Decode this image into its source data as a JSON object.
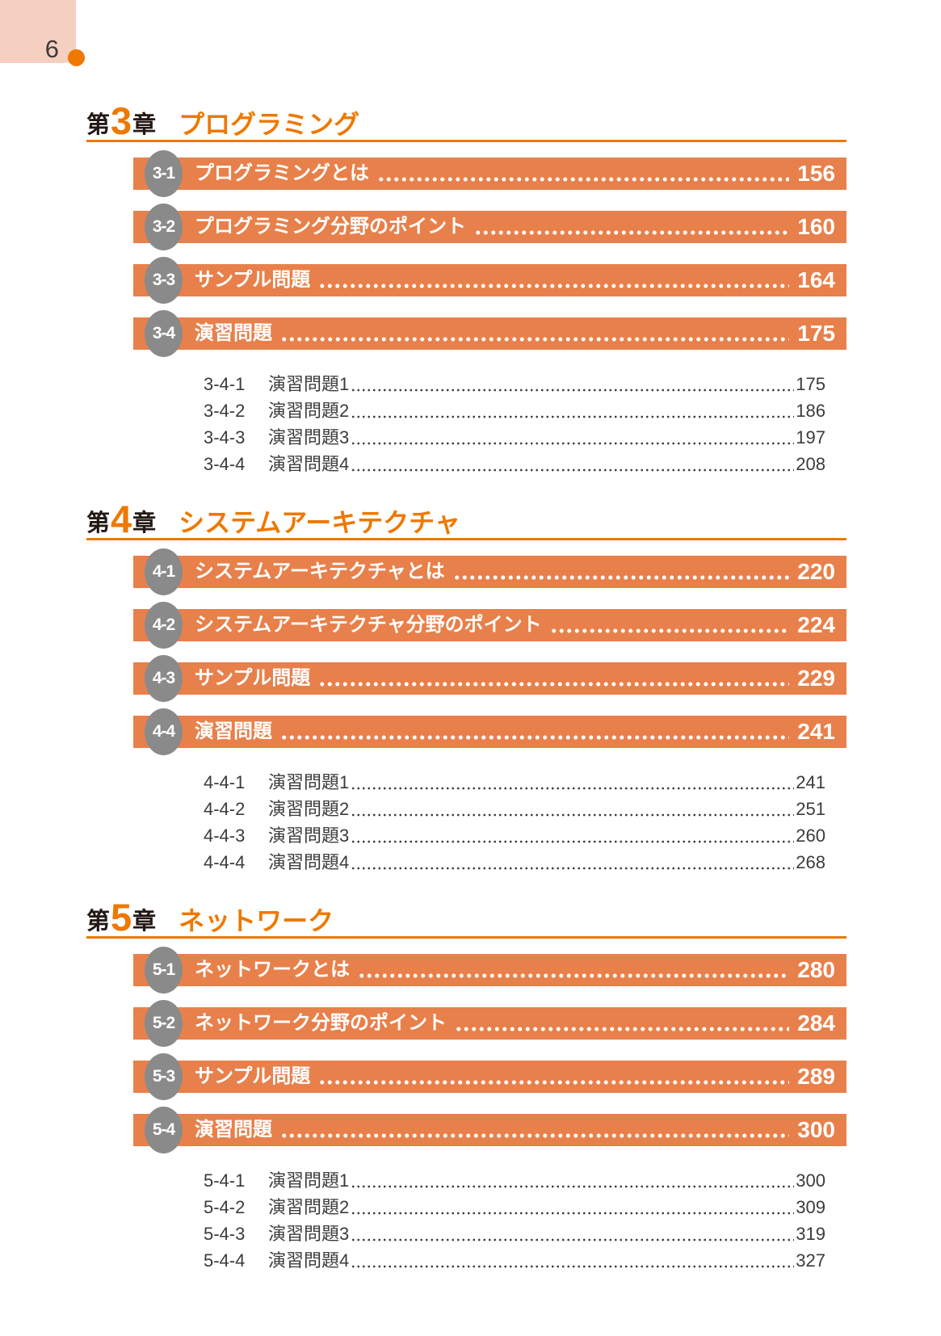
{
  "page": {
    "number": "6"
  },
  "colors": {
    "accent_orange": "#ee7800",
    "bar_orange": "#e8804b",
    "badge_gray": "#8a8a8a",
    "corner_pink": "#f5d0c1"
  },
  "chapters": [
    {
      "prefix": "第",
      "number": "3",
      "suffix": "章",
      "title": "プログラミング",
      "sections": [
        {
          "id": "3-1",
          "title": "プログラミングとは",
          "page": "156",
          "subitems": []
        },
        {
          "id": "3-2",
          "title": "プログラミング分野のポイント",
          "page": "160",
          "subitems": []
        },
        {
          "id": "3-3",
          "title": "サンプル問題",
          "page": "164",
          "subitems": []
        },
        {
          "id": "3-4",
          "title": "演習問題",
          "page": "175",
          "subitems": [
            {
              "id": "3-4-1",
              "title": "演習問題1",
              "page": "175"
            },
            {
              "id": "3-4-2",
              "title": "演習問題2",
              "page": "186"
            },
            {
              "id": "3-4-3",
              "title": "演習問題3",
              "page": "197"
            },
            {
              "id": "3-4-4",
              "title": "演習問題4",
              "page": "208"
            }
          ]
        }
      ]
    },
    {
      "prefix": "第",
      "number": "4",
      "suffix": "章",
      "title": "システムアーキテクチャ",
      "sections": [
        {
          "id": "4-1",
          "title": "システムアーキテクチャとは",
          "page": "220",
          "subitems": []
        },
        {
          "id": "4-2",
          "title": "システムアーキテクチャ分野のポイント",
          "page": "224",
          "subitems": []
        },
        {
          "id": "4-3",
          "title": "サンプル問題",
          "page": "229",
          "subitems": []
        },
        {
          "id": "4-4",
          "title": "演習問題",
          "page": "241",
          "subitems": [
            {
              "id": "4-4-1",
              "title": "演習問題1",
              "page": "241"
            },
            {
              "id": "4-4-2",
              "title": "演習問題2",
              "page": "251"
            },
            {
              "id": "4-4-3",
              "title": "演習問題3",
              "page": "260"
            },
            {
              "id": "4-4-4",
              "title": "演習問題4",
              "page": "268"
            }
          ]
        }
      ]
    },
    {
      "prefix": "第",
      "number": "5",
      "suffix": "章",
      "title": "ネットワーク",
      "sections": [
        {
          "id": "5-1",
          "title": "ネットワークとは",
          "page": "280",
          "subitems": []
        },
        {
          "id": "5-2",
          "title": "ネットワーク分野のポイント",
          "page": "284",
          "subitems": []
        },
        {
          "id": "5-3",
          "title": "サンプル問題",
          "page": "289",
          "subitems": []
        },
        {
          "id": "5-4",
          "title": "演習問題",
          "page": "300",
          "subitems": [
            {
              "id": "5-4-1",
              "title": "演習問題1",
              "page": "300"
            },
            {
              "id": "5-4-2",
              "title": "演習問題2",
              "page": "309"
            },
            {
              "id": "5-4-3",
              "title": "演習問題3",
              "page": "319"
            },
            {
              "id": "5-4-4",
              "title": "演習問題4",
              "page": "327"
            }
          ]
        }
      ]
    }
  ]
}
